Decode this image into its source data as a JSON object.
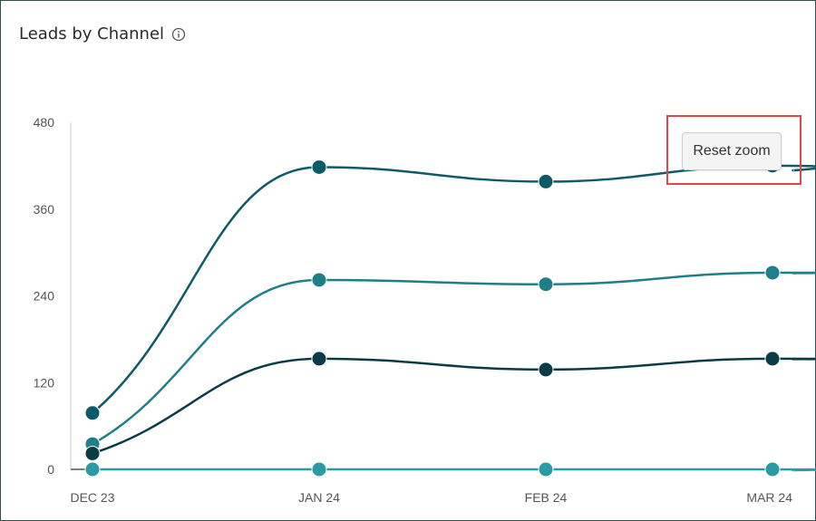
{
  "header": {
    "title": "Leads by Channel",
    "info_icon": "info-icon"
  },
  "toolbar": {
    "reset_zoom_label": "Reset zoom"
  },
  "colors": {
    "series": [
      "#0f5a68",
      "#1f7f88",
      "#0c3b48",
      "#2a9aa5"
    ]
  },
  "chart_data": {
    "type": "line",
    "title": "Leads by Channel",
    "categories": [
      "DEC 23",
      "JAN 24",
      "FEB 24",
      "MAR 24"
    ],
    "yticks": [
      0,
      120,
      240,
      360,
      480
    ],
    "ylim": [
      0,
      480
    ],
    "grid": false,
    "series": [
      {
        "values": [
          78,
          418,
          398,
          420
        ]
      },
      {
        "values": [
          35,
          262,
          256,
          272
        ]
      },
      {
        "values": [
          22,
          153,
          138,
          153
        ]
      },
      {
        "values": [
          0,
          0,
          0,
          0
        ]
      }
    ]
  }
}
